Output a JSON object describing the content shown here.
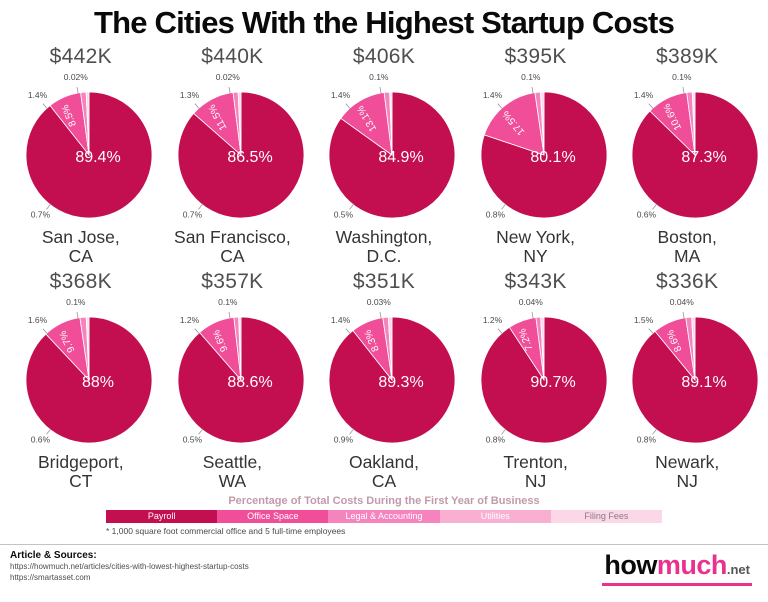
{
  "title": "The Cities With the Highest Startup Costs",
  "chart_data": {
    "type": "pie",
    "legend_title": "Percentage of Total Costs During the First Year of Business",
    "categories": [
      "Payroll",
      "Office Space",
      "Legal & Accounting",
      "Utilities",
      "Filing Fees"
    ],
    "colors": [
      "#C30E4F",
      "#F04E98",
      "#F584BE",
      "#F8AFD2",
      "#FBD7E8"
    ],
    "footnote": "* 1,000 square foot commercial office and 5 full-time employees",
    "pies": [
      {
        "total": "$442K",
        "city_line1": "San Jose,",
        "city_line2": "CA",
        "values": [
          89.4,
          8.5,
          1.4,
          0.02,
          0.7
        ],
        "labels": [
          "89.4%",
          "8.5%",
          "1.4%",
          "0.02%",
          "0.7%"
        ]
      },
      {
        "total": "$440K",
        "city_line1": "San Francisco,",
        "city_line2": "CA",
        "values": [
          86.5,
          11.5,
          1.3,
          0.02,
          0.7
        ],
        "labels": [
          "86.5%",
          "11.5%",
          "1.3%",
          "0.02%",
          "0.7%"
        ]
      },
      {
        "total": "$406K",
        "city_line1": "Washington,",
        "city_line2": "D.C.",
        "values": [
          84.9,
          13.1,
          1.4,
          0.1,
          0.5
        ],
        "labels": [
          "84.9%",
          "13.1%",
          "1.4%",
          "0.1%",
          "0.5%"
        ]
      },
      {
        "total": "$395K",
        "city_line1": "New York,",
        "city_line2": "NY",
        "values": [
          80.1,
          17.5,
          1.4,
          0.1,
          0.8
        ],
        "labels": [
          "80.1%",
          "17.5%",
          "1.4%",
          "0.1%",
          "0.8%"
        ]
      },
      {
        "total": "$389K",
        "city_line1": "Boston,",
        "city_line2": "MA",
        "values": [
          87.3,
          10.6,
          1.4,
          0.1,
          0.6
        ],
        "labels": [
          "87.3%",
          "10.6%",
          "1.4%",
          "0.1%",
          "0.6%"
        ]
      },
      {
        "total": "$368K",
        "city_line1": "Bridgeport,",
        "city_line2": "CT",
        "values": [
          88,
          9.7,
          1.6,
          0.1,
          0.6
        ],
        "labels": [
          "88%",
          "9.7%",
          "1.6%",
          "0.1%",
          "0.6%"
        ]
      },
      {
        "total": "$357K",
        "city_line1": "Seattle,",
        "city_line2": "WA",
        "values": [
          88.6,
          9.6,
          1.2,
          0.1,
          0.5
        ],
        "labels": [
          "88.6%",
          "9.6%",
          "1.2%",
          "0.1%",
          "0.5%"
        ]
      },
      {
        "total": "$351K",
        "city_line1": "Oakland,",
        "city_line2": "CA",
        "values": [
          89.3,
          8.3,
          1.4,
          0.03,
          0.9
        ],
        "labels": [
          "89.3%",
          "8.3%",
          "1.4%",
          "0.03%",
          "0.9%"
        ]
      },
      {
        "total": "$343K",
        "city_line1": "Trenton,",
        "city_line2": "NJ",
        "values": [
          90.7,
          7.2,
          1.2,
          0.04,
          0.8
        ],
        "labels": [
          "90.7%",
          "7.2%",
          "1.2%",
          "0.04%",
          "0.8%"
        ]
      },
      {
        "total": "$336K",
        "city_line1": "Newark,",
        "city_line2": "NJ",
        "values": [
          89.1,
          8.6,
          1.5,
          0.04,
          0.8
        ],
        "labels": [
          "89.1%",
          "8.6%",
          "1.5%",
          "0.04%",
          "0.8%"
        ]
      }
    ]
  },
  "footer": {
    "sources_heading": "Article & Sources:",
    "sources": [
      "https://howmuch.net/articles/cities-with-lowest-highest-startup-costs",
      "https://smartasset.com"
    ],
    "logo": {
      "part1": "how",
      "part2": "much",
      "suffix": ".net",
      "accent": "#e9328e"
    }
  }
}
